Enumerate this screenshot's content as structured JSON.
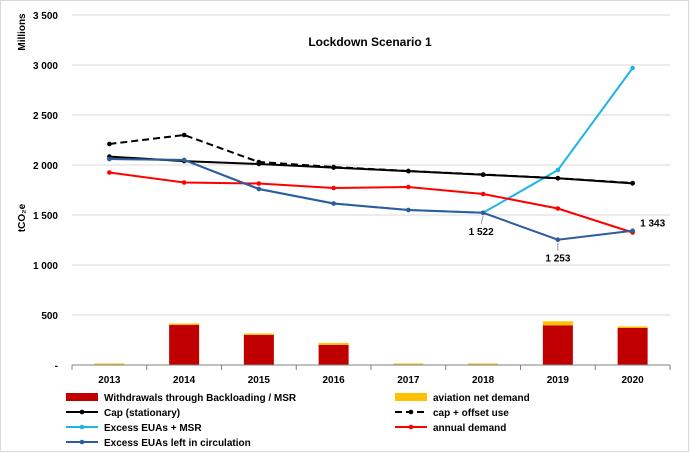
{
  "chart_data": {
    "type": "bar+line",
    "title": "Lockdown Scenario 1",
    "unit_label": "Millions",
    "ylabel": "tCO₂e",
    "ylim": [
      0,
      3500
    ],
    "y_ticks": [
      "-",
      "500",
      "1 000",
      "1 500",
      "2 000",
      "2 500",
      "3 000",
      "3 500"
    ],
    "y_tick_values": [
      0,
      500,
      1000,
      1500,
      2000,
      2500,
      3000,
      3500
    ],
    "categories": [
      "2013",
      "2014",
      "2015",
      "2016",
      "2017",
      "2018",
      "2019",
      "2020"
    ],
    "gridlines": "horizontal",
    "legend_position": "bottom",
    "bar_series": [
      {
        "name": "Withdrawals through Backloading / MSR",
        "color": "#c00000",
        "values": [
          0,
          400,
          300,
          200,
          0,
          0,
          397,
          370
        ]
      },
      {
        "name": "aviation net demand",
        "color": "#ffc000",
        "values": [
          15,
          15,
          15,
          20,
          15,
          15,
          40,
          15
        ]
      }
    ],
    "line_series": [
      {
        "name": "Cap (stationary)",
        "color": "#000000",
        "dash": "solid",
        "values": [
          2084,
          2039,
          2010,
          1974,
          1939,
          1903,
          1868,
          1816
        ]
      },
      {
        "name": "cap + offset use",
        "color": "#000000",
        "dash": "dashed",
        "values": [
          2210,
          2300,
          2030,
          1980,
          1940,
          1905,
          1868,
          1820
        ]
      },
      {
        "name": "Excess EUAs + MSR",
        "color": "#1fb4e8",
        "dash": "solid",
        "values": [
          2060,
          2050,
          1760,
          1615,
          1550,
          1522,
          1950,
          2970
        ]
      },
      {
        "name": "annual demand",
        "color": "#ff0000",
        "dash": "solid",
        "values": [
          1925,
          1825,
          1815,
          1770,
          1780,
          1710,
          1565,
          1325
        ]
      },
      {
        "name": "Excess EUAs left in circulation",
        "color": "#2e5c9e",
        "dash": "solid",
        "values": [
          2060,
          2050,
          1760,
          1615,
          1550,
          1522,
          1253,
          1343
        ]
      }
    ],
    "annotations": [
      {
        "text": "1 522",
        "category": "2018",
        "value": 1522
      },
      {
        "text": "1 253",
        "category": "2019",
        "value": 1253
      },
      {
        "text": "1 343",
        "category": "2020",
        "value": 1343
      }
    ]
  }
}
